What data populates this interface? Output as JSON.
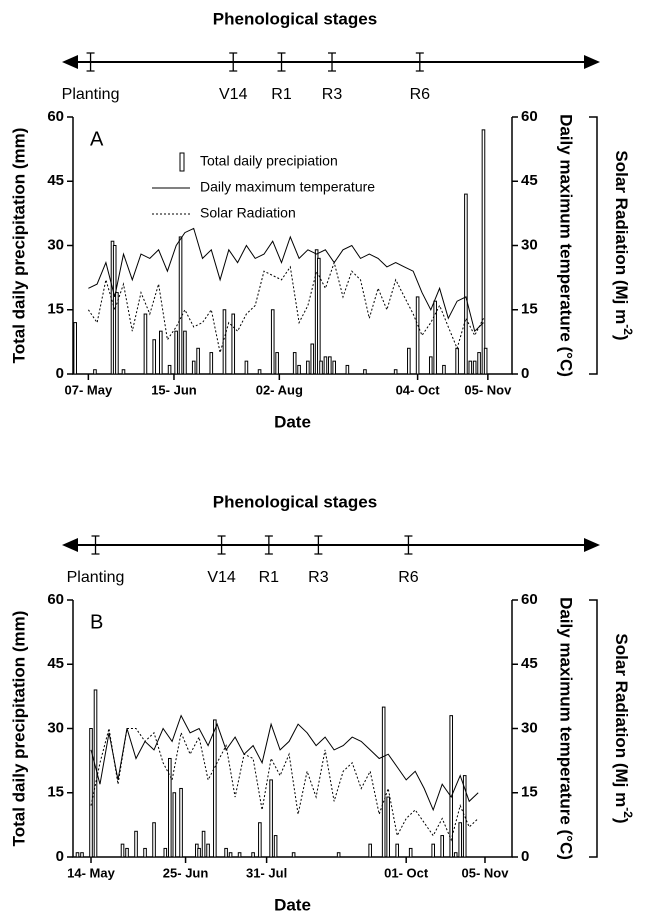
{
  "chart_data": [
    {
      "type": "combo",
      "title": "Phenological stages",
      "panel_label": "A",
      "stages": {
        "labels": [
          "Planting",
          "V14",
          "R1",
          "R3",
          "R6"
        ],
        "x": [
          1,
          66,
          88,
          111,
          151
        ]
      },
      "xlabel": "Date",
      "ylabel": "Total daily precipitation (mm)",
      "y2label": "Daily maximum temperature (°C)",
      "y3label": {
        "text": "Solar Radiation (Mj m",
        "sup": "-2",
        "end": ")"
      },
      "xlim": [
        -7,
        193
      ],
      "xticks": [
        {
          "value": 0,
          "label": "07- May"
        },
        {
          "value": 39,
          "label": "15- Jun"
        },
        {
          "value": 87,
          "label": "02- Aug"
        },
        {
          "value": 150,
          "label": "04- Oct"
        },
        {
          "value": 182,
          "label": "05- Nov"
        }
      ],
      "ylim": [
        0,
        60
      ],
      "yticks": [
        0,
        15,
        30,
        45,
        60
      ],
      "y2lim": [
        0,
        60
      ],
      "y2ticks": [
        0,
        15,
        30,
        45,
        60
      ],
      "y3lim": [
        0,
        60
      ],
      "legend": true,
      "series": [
        {
          "name": "Total daily precipiation",
          "type": "bar",
          "color": "#000000",
          "x": [
            -6,
            3,
            11,
            12,
            13,
            16,
            26,
            30,
            33,
            37,
            40,
            42,
            44,
            48,
            50,
            56,
            62,
            66,
            72,
            78,
            84,
            86,
            94,
            96,
            100,
            102,
            104,
            105,
            106,
            108,
            110,
            112,
            118,
            126,
            140,
            146,
            150,
            156,
            158,
            162,
            168,
            172,
            174,
            176,
            178,
            180,
            181
          ],
          "values": [
            12,
            1,
            31,
            30,
            19,
            1,
            14,
            8,
            10,
            2,
            10,
            32,
            10,
            3,
            6,
            5,
            15,
            14,
            3,
            1,
            15,
            5,
            5,
            2,
            3,
            7,
            29,
            27,
            3,
            4,
            4,
            3,
            2,
            1,
            1,
            6,
            18,
            4,
            17,
            2,
            6,
            42,
            3,
            3,
            5,
            57,
            6
          ]
        },
        {
          "name": "Daily maximum temperature",
          "type": "line",
          "axis": "y2",
          "color": "#000000",
          "dash": "none",
          "x": [
            0,
            4,
            8,
            12,
            16,
            20,
            24,
            28,
            32,
            36,
            40,
            44,
            48,
            52,
            56,
            60,
            64,
            68,
            72,
            76,
            80,
            84,
            88,
            92,
            96,
            100,
            104,
            108,
            112,
            116,
            120,
            124,
            128,
            132,
            136,
            140,
            144,
            148,
            152,
            156,
            160,
            164,
            168,
            172,
            176,
            180
          ],
          "values": [
            20,
            21,
            26,
            18,
            28,
            22,
            28,
            27,
            29,
            24,
            30,
            33,
            34,
            27,
            29,
            22,
            29,
            26,
            30,
            27,
            28,
            31,
            26,
            32,
            27,
            29,
            28,
            29,
            26,
            29,
            30,
            27,
            28,
            27,
            25,
            26,
            25,
            24,
            19,
            15,
            20,
            13,
            17,
            18,
            10,
            12
          ]
        },
        {
          "name": "Solar Radiation",
          "type": "line",
          "axis": "y3",
          "color": "#000000",
          "dash": "2 2",
          "x": [
            0,
            4,
            8,
            12,
            16,
            20,
            24,
            28,
            32,
            36,
            40,
            44,
            48,
            52,
            56,
            60,
            64,
            68,
            72,
            76,
            80,
            84,
            88,
            92,
            96,
            100,
            104,
            108,
            112,
            116,
            120,
            124,
            128,
            132,
            136,
            140,
            144,
            148,
            152,
            156,
            160,
            164,
            168,
            172,
            176,
            180
          ],
          "values": [
            15,
            12,
            22,
            15,
            21,
            10,
            19,
            14,
            21,
            8,
            11,
            15,
            11,
            12,
            15,
            5,
            12,
            10,
            14,
            16,
            24,
            23,
            22,
            25,
            12,
            16,
            24,
            20,
            26,
            18,
            24,
            22,
            13,
            20,
            15,
            22,
            18,
            14,
            9,
            12,
            16,
            11,
            6,
            13,
            9,
            13
          ]
        }
      ]
    },
    {
      "type": "combo",
      "title": "Phenological stages",
      "panel_label": "B",
      "stages": {
        "labels": [
          "Planting",
          "V14",
          "R1",
          "R3",
          "R6"
        ],
        "x": [
          2,
          58,
          79,
          101,
          141
        ]
      },
      "xlabel": "Date",
      "ylabel": "Total daily precipitation (mm)",
      "y2label": "Daily maximum temperature (°C)",
      "y3label": {
        "text": "Solar Radiation (Mj m",
        "sup": "-2",
        "end": ")"
      },
      "xlim": [
        -8,
        187
      ],
      "xticks": [
        {
          "value": 0,
          "label": "14- May"
        },
        {
          "value": 42,
          "label": "25- Jun"
        },
        {
          "value": 78,
          "label": "31- Jul"
        },
        {
          "value": 140,
          "label": "01- Oct"
        },
        {
          "value": 175,
          "label": "05- Nov"
        }
      ],
      "ylim": [
        0,
        60
      ],
      "yticks": [
        0,
        15,
        30,
        45,
        60
      ],
      "y2lim": [
        0,
        60
      ],
      "y2ticks": [
        0,
        15,
        30,
        45,
        60
      ],
      "y3lim": [
        0,
        60
      ],
      "legend": false,
      "series": [
        {
          "type": "bar",
          "color": "#000000",
          "x": [
            -6,
            -4,
            0,
            2,
            14,
            16,
            20,
            24,
            28,
            33,
            35,
            37,
            40,
            47,
            48,
            50,
            52,
            55,
            60,
            62,
            66,
            72,
            75,
            80,
            82,
            90,
            110,
            124,
            130,
            132,
            136,
            142,
            152,
            156,
            160,
            162,
            164,
            166
          ],
          "values": [
            1,
            1,
            30,
            39,
            3,
            2,
            6,
            2,
            8,
            2,
            23,
            15,
            16,
            3,
            2,
            6,
            3,
            32,
            2,
            1,
            1,
            1,
            8,
            18,
            5,
            1,
            1,
            3,
            35,
            14,
            3,
            2,
            3,
            5,
            33,
            1,
            8,
            19
          ]
        },
        {
          "type": "line",
          "axis": "y2",
          "color": "#000000",
          "dash": "none",
          "x": [
            0,
            4,
            8,
            12,
            16,
            20,
            24,
            28,
            32,
            36,
            40,
            44,
            48,
            52,
            56,
            60,
            64,
            68,
            72,
            76,
            80,
            84,
            88,
            92,
            96,
            100,
            104,
            108,
            112,
            116,
            120,
            124,
            128,
            132,
            136,
            140,
            144,
            148,
            152,
            156,
            160,
            164,
            168,
            172
          ],
          "values": [
            25,
            17,
            29,
            18,
            30,
            23,
            27,
            25,
            30,
            27,
            33,
            29,
            30,
            26,
            31,
            25,
            28,
            24,
            26,
            22,
            31,
            25,
            27,
            31,
            29,
            26,
            28,
            25,
            26,
            28,
            27,
            25,
            23,
            24,
            21,
            18,
            20,
            16,
            11,
            17,
            14,
            19,
            13,
            15
          ]
        },
        {
          "type": "line",
          "axis": "y3",
          "color": "#000000",
          "dash": "2 2",
          "x": [
            0,
            4,
            8,
            12,
            16,
            20,
            24,
            28,
            32,
            36,
            40,
            44,
            48,
            52,
            56,
            60,
            64,
            68,
            72,
            76,
            80,
            84,
            88,
            92,
            96,
            100,
            104,
            108,
            112,
            116,
            120,
            124,
            128,
            132,
            136,
            140,
            144,
            148,
            152,
            156,
            160,
            164,
            168,
            172
          ],
          "values": [
            12,
            22,
            30,
            17,
            30,
            30,
            27,
            29,
            22,
            18,
            29,
            24,
            28,
            18,
            22,
            26,
            14,
            24,
            23,
            11,
            23,
            19,
            24,
            10,
            20,
            14,
            25,
            13,
            20,
            22,
            16,
            20,
            10,
            16,
            5,
            9,
            11,
            8,
            5,
            9,
            4,
            12,
            7,
            9
          ]
        }
      ]
    }
  ]
}
